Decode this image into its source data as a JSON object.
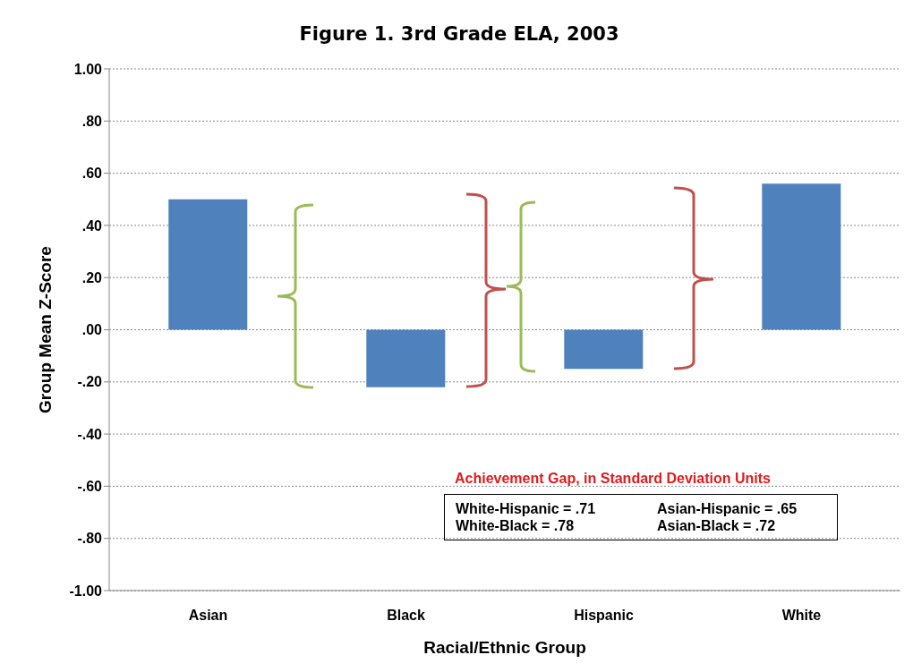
{
  "chart_data": {
    "type": "bar",
    "title": "Figure 1. 3rd Grade ELA, 2003",
    "xlabel": "Racial/Ethnic Group",
    "ylabel": "Group Mean Z-Score",
    "categories": [
      "Asian",
      "Black",
      "Hispanic",
      "White"
    ],
    "values": [
      0.5,
      -0.22,
      -0.15,
      0.56
    ],
    "color": "#4f81bd",
    "ylim": [
      -1,
      1
    ],
    "yticks": [
      {
        "value": -1,
        "label": "-1.00"
      },
      {
        "value": -0.8,
        "label": "-.80"
      },
      {
        "value": -0.6,
        "label": "-.60"
      },
      {
        "value": -0.4,
        "label": "-.40"
      },
      {
        "value": -0.2,
        "label": "-.20"
      },
      {
        "value": 0,
        "label": ".00"
      },
      {
        "value": 0.2,
        "label": ".20"
      },
      {
        "value": 0.4,
        "label": ".40"
      },
      {
        "value": 0.6,
        "label": ".60"
      },
      {
        "value": 0.8,
        "label": ".80"
      },
      {
        "value": 1,
        "label": "1.00"
      }
    ],
    "grid": "y",
    "annotations": [
      "Achievement Gap, in Standard Deviation Units",
      "White-Hispanic = .71",
      "Asian-Hispanic = .65",
      "White-Black = .78",
      "Asian-Black = .72"
    ]
  }
}
